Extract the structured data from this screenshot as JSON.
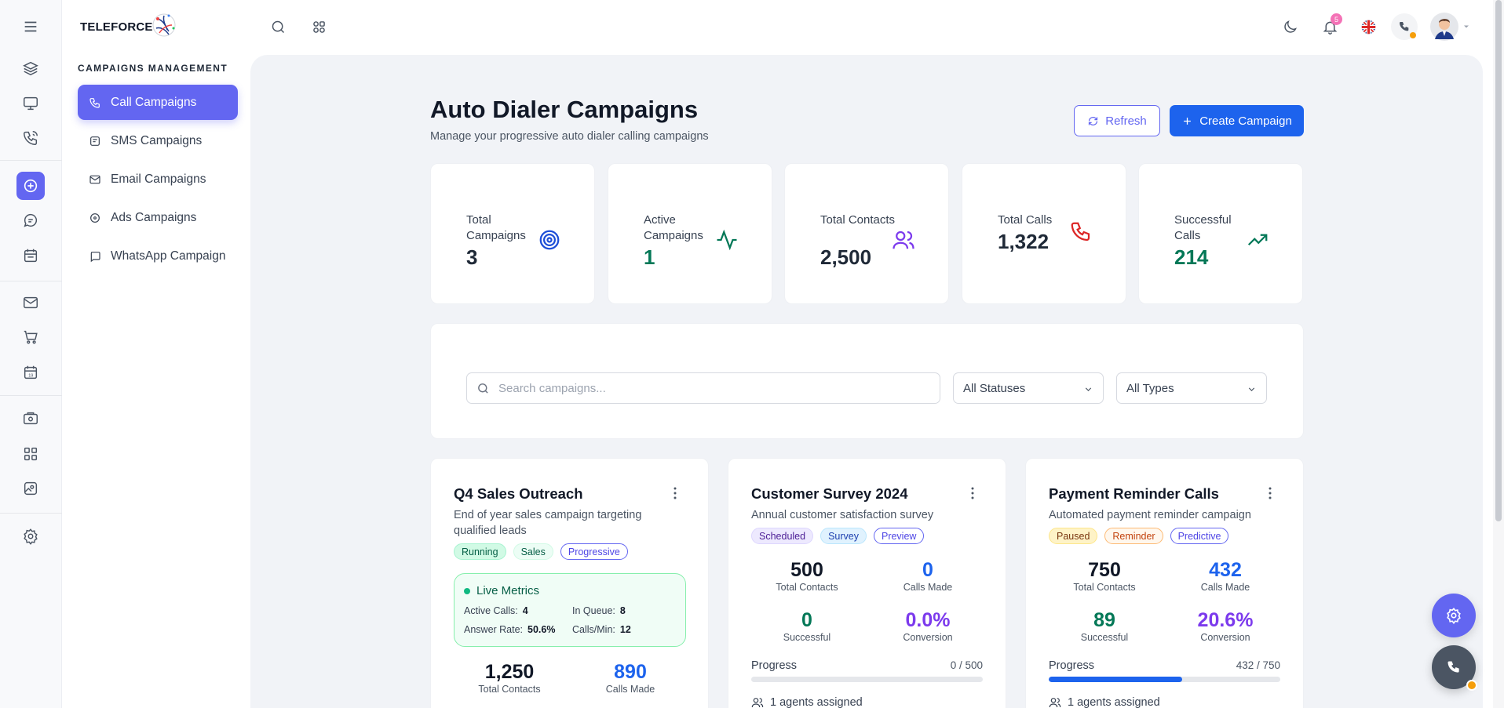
{
  "brand": {
    "name": "TELEFORCE"
  },
  "rail": {
    "icons": [
      "menu-icon",
      "layers-icon",
      "monitor-icon",
      "phone-signal-icon",
      "target-icon",
      "chat-icon",
      "calendar-icon",
      "mail-icon",
      "cart-icon",
      "calendar-date-icon",
      "settings-box-icon",
      "apps-grid-icon",
      "image-icon",
      "gear-icon"
    ]
  },
  "sidebar": {
    "section_title": "CAMPAIGNS MANAGEMENT",
    "items": [
      {
        "label": "Call Campaigns",
        "active": true
      },
      {
        "label": "SMS Campaigns",
        "active": false
      },
      {
        "label": "Email Campaigns",
        "active": false
      },
      {
        "label": "Ads Campaigns",
        "active": false
      },
      {
        "label": "WhatsApp Campaign",
        "active": false
      }
    ]
  },
  "topbar": {
    "notification_count": "5"
  },
  "page": {
    "title": "Auto Dialer Campaigns",
    "subtitle": "Manage your progressive auto dialer calling campaigns",
    "refresh_label": "Refresh",
    "create_label": "Create Campaign"
  },
  "stats": [
    {
      "label": "Total Campaigns",
      "value": "3",
      "color": "#1f2937"
    },
    {
      "label": "Active Campaigns",
      "value": "1",
      "color": "#047857"
    },
    {
      "label": "Total Contacts",
      "value": "2,500",
      "color": "#1f2937"
    },
    {
      "label": "Total Calls",
      "value": "1,322",
      "color": "#1f2937"
    },
    {
      "label": "Successful Calls",
      "value": "214",
      "color": "#047857"
    }
  ],
  "filters": {
    "search_placeholder": "Search campaigns...",
    "status_value": "All Statuses",
    "type_value": "All Types"
  },
  "campaigns": [
    {
      "title": "Q4 Sales Outreach",
      "description": "End of year sales campaign targeting qualified leads",
      "tags": [
        "Running",
        "Sales",
        "Progressive"
      ],
      "live": {
        "title": "Live Metrics",
        "active_calls_label": "Active Calls:",
        "active_calls": "4",
        "in_queue_label": "In Queue:",
        "in_queue": "8",
        "answer_rate_label": "Answer Rate:",
        "answer_rate": "50.6%",
        "calls_min_label": "Calls/Min:",
        "calls_min": "12"
      },
      "total_contacts": "1,250",
      "total_contacts_label": "Total Contacts",
      "calls_made": "890",
      "calls_made_label": "Calls Made"
    },
    {
      "title": "Customer Survey 2024",
      "description": "Annual customer satisfaction survey",
      "tags": [
        "Scheduled",
        "Survey",
        "Preview"
      ],
      "total_contacts": "500",
      "total_contacts_label": "Total Contacts",
      "calls_made": "0",
      "calls_made_label": "Calls Made",
      "successful": "0",
      "successful_label": "Successful",
      "conversion": "0.0%",
      "conversion_label": "Conversion",
      "progress_label": "Progress",
      "progress_count": "0 / 500",
      "progress_fraction": 0,
      "agents": "1 agents assigned"
    },
    {
      "title": "Payment Reminder Calls",
      "description": "Automated payment reminder campaign",
      "tags": [
        "Paused",
        "Reminder",
        "Predictive"
      ],
      "total_contacts": "750",
      "total_contacts_label": "Total Contacts",
      "calls_made": "432",
      "calls_made_label": "Calls Made",
      "successful": "89",
      "successful_label": "Successful",
      "conversion": "20.6%",
      "conversion_label": "Conversion",
      "progress_label": "Progress",
      "progress_count": "432 / 750",
      "progress_fraction": 0.576,
      "agents": "1 agents assigned"
    }
  ]
}
